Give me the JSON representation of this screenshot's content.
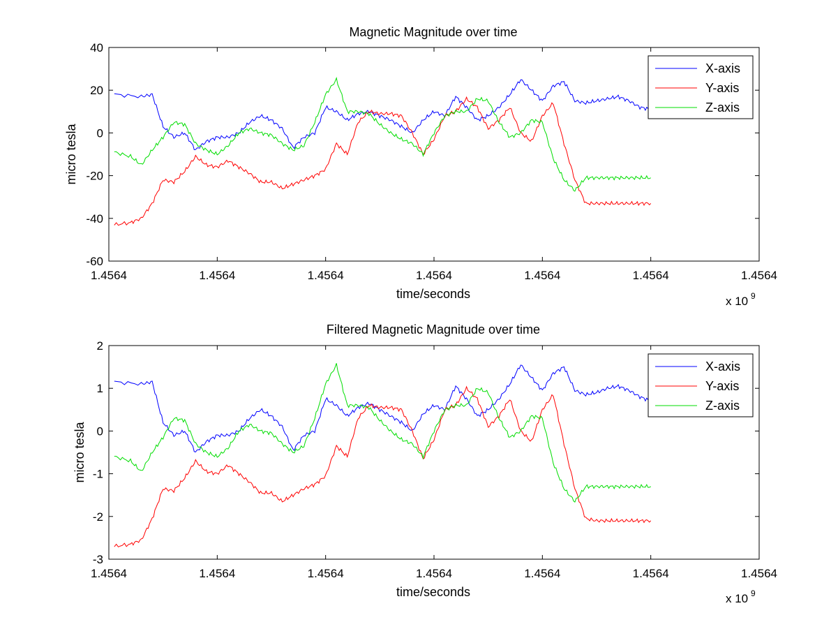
{
  "colors": {
    "x_axis": "#0000ff",
    "y_axis": "#ff0000",
    "z_axis": "#00dd00"
  },
  "chart_data": [
    {
      "type": "line",
      "title": "Magnetic Magnitude over time",
      "xlabel": "time/seconds",
      "ylabel": "micro tesla",
      "x_exponent_label": "x 10",
      "x_exponent_power": "9",
      "xlim": [
        0,
        6
      ],
      "ylim": [
        -60,
        40
      ],
      "xtick_labels": [
        "1.4564",
        "1.4564",
        "1.4564",
        "1.4564",
        "1.4564",
        "1.4564",
        "1.4564"
      ],
      "yticks": [
        -60,
        -40,
        -20,
        0,
        20,
        40
      ],
      "ytick_labels": [
        "-60",
        "-40",
        "-20",
        "0",
        "20",
        "40"
      ],
      "grid": false,
      "legend": "top-right",
      "series": [
        {
          "name": "X-axis",
          "x": [
            0.05,
            0.3,
            0.4,
            0.5,
            0.6,
            0.7,
            0.8,
            0.9,
            1.0,
            1.1,
            1.2,
            1.3,
            1.4,
            1.5,
            1.6,
            1.7,
            1.8,
            1.9,
            2.0,
            2.1,
            2.2,
            2.3,
            2.4,
            2.5,
            2.6,
            2.7,
            2.8,
            2.9,
            3.0,
            3.1,
            3.2,
            3.3,
            3.4,
            3.5,
            3.6,
            3.7,
            3.8,
            3.9,
            4.0,
            4.1,
            4.2,
            4.3,
            4.4,
            4.5,
            4.6,
            4.7,
            4.8,
            4.9,
            5.0
          ],
          "y": [
            18,
            17,
            18,
            3,
            -2,
            0,
            -8,
            -4,
            -2,
            -2,
            0,
            5,
            8,
            6,
            2,
            -7,
            -2,
            0,
            12,
            10,
            6,
            9,
            10,
            8,
            6,
            3,
            0,
            6,
            10,
            8,
            17,
            12,
            6,
            8,
            12,
            18,
            25,
            20,
            15,
            22,
            24,
            15,
            14,
            15,
            16,
            17,
            15,
            12,
            11
          ]
        },
        {
          "name": "Y-axis",
          "x": [
            0.05,
            0.2,
            0.3,
            0.4,
            0.5,
            0.6,
            0.7,
            0.8,
            0.9,
            1.0,
            1.1,
            1.2,
            1.3,
            1.4,
            1.5,
            1.6,
            1.7,
            1.8,
            1.9,
            2.0,
            2.1,
            2.2,
            2.3,
            2.4,
            2.5,
            2.6,
            2.7,
            2.8,
            2.9,
            3.0,
            3.1,
            3.2,
            3.3,
            3.4,
            3.5,
            3.6,
            3.7,
            3.8,
            3.9,
            4.0,
            4.1,
            4.2,
            4.3,
            4.4,
            4.5,
            4.6,
            4.7,
            4.8,
            4.9,
            5.0
          ],
          "y": [
            -43,
            -42,
            -40,
            -33,
            -22,
            -23,
            -18,
            -11,
            -15,
            -16,
            -13,
            -16,
            -19,
            -23,
            -23,
            -26,
            -24,
            -22,
            -20,
            -17,
            -5,
            -10,
            5,
            10,
            9,
            9,
            8,
            0,
            -10,
            -3,
            8,
            10,
            16,
            12,
            2,
            6,
            12,
            0,
            -4,
            8,
            14,
            -5,
            -22,
            -33,
            -33,
            -33,
            -33,
            -33,
            -33,
            -33
          ]
        },
        {
          "name": "Z-axis",
          "x": [
            0.05,
            0.2,
            0.3,
            0.4,
            0.5,
            0.6,
            0.7,
            0.8,
            0.9,
            1.0,
            1.1,
            1.2,
            1.3,
            1.4,
            1.5,
            1.6,
            1.7,
            1.8,
            1.9,
            2.0,
            2.1,
            2.2,
            2.3,
            2.4,
            2.5,
            2.6,
            2.7,
            2.8,
            2.9,
            3.0,
            3.1,
            3.2,
            3.3,
            3.4,
            3.5,
            3.6,
            3.7,
            3.8,
            3.9,
            4.0,
            4.1,
            4.2,
            4.3,
            4.4,
            4.5,
            4.6,
            4.7,
            4.8,
            4.9,
            5.0
          ],
          "y": [
            -9,
            -11,
            -15,
            -8,
            -2,
            5,
            4,
            -5,
            -8,
            -10,
            -6,
            0,
            2,
            0,
            -1,
            -5,
            -8,
            -6,
            5,
            18,
            25,
            10,
            10,
            9,
            4,
            0,
            -3,
            -5,
            -10,
            0,
            8,
            10,
            10,
            16,
            15,
            5,
            -2,
            0,
            6,
            5,
            -12,
            -22,
            -27,
            -21,
            -21,
            -21,
            -21,
            -21,
            -21,
            -21
          ]
        }
      ]
    },
    {
      "type": "line",
      "title": "Filtered Magnetic Magnitude over time",
      "xlabel": "time/seconds",
      "ylabel": "micro tesla",
      "x_exponent_label": "x 10",
      "x_exponent_power": "9",
      "xlim": [
        0,
        6
      ],
      "ylim": [
        -3,
        2
      ],
      "xtick_labels": [
        "1.4564",
        "1.4564",
        "1.4564",
        "1.4564",
        "1.4564",
        "1.4564",
        "1.4564"
      ],
      "yticks": [
        -3,
        -2,
        -1,
        0,
        1,
        2
      ],
      "ytick_labels": [
        "-3",
        "-2",
        "-1",
        "0",
        "1",
        "2"
      ],
      "grid": false,
      "legend": "top-right",
      "series": [
        {
          "name": "X-axis",
          "x": [
            0.05,
            0.3,
            0.4,
            0.5,
            0.6,
            0.7,
            0.8,
            0.9,
            1.0,
            1.1,
            1.2,
            1.3,
            1.4,
            1.5,
            1.6,
            1.7,
            1.8,
            1.9,
            2.0,
            2.1,
            2.2,
            2.3,
            2.4,
            2.5,
            2.6,
            2.7,
            2.8,
            2.9,
            3.0,
            3.1,
            3.2,
            3.3,
            3.4,
            3.5,
            3.6,
            3.7,
            3.8,
            3.9,
            4.0,
            4.1,
            4.2,
            4.3,
            4.4,
            4.5,
            4.6,
            4.7,
            4.8,
            4.9,
            5.0
          ],
          "y": [
            1.15,
            1.1,
            1.15,
            0.2,
            -0.1,
            0.0,
            -0.5,
            -0.25,
            -0.1,
            -0.1,
            0.0,
            0.3,
            0.5,
            0.35,
            0.1,
            -0.45,
            -0.1,
            0.0,
            0.75,
            0.6,
            0.35,
            0.55,
            0.65,
            0.5,
            0.35,
            0.2,
            0.0,
            0.4,
            0.6,
            0.5,
            1.05,
            0.75,
            0.35,
            0.5,
            0.75,
            1.1,
            1.55,
            1.25,
            0.95,
            1.35,
            1.5,
            0.95,
            0.85,
            0.9,
            1.0,
            1.05,
            0.95,
            0.8,
            0.7
          ]
        },
        {
          "name": "Y-axis",
          "x": [
            0.05,
            0.2,
            0.3,
            0.4,
            0.5,
            0.6,
            0.7,
            0.8,
            0.9,
            1.0,
            1.1,
            1.2,
            1.3,
            1.4,
            1.5,
            1.6,
            1.7,
            1.8,
            1.9,
            2.0,
            2.1,
            2.2,
            2.3,
            2.4,
            2.5,
            2.6,
            2.7,
            2.8,
            2.9,
            3.0,
            3.1,
            3.2,
            3.3,
            3.4,
            3.5,
            3.6,
            3.7,
            3.8,
            3.9,
            4.0,
            4.1,
            4.2,
            4.3,
            4.4,
            4.5,
            4.6,
            4.7,
            4.8,
            4.9,
            5.0
          ],
          "y": [
            -2.7,
            -2.65,
            -2.55,
            -2.05,
            -1.35,
            -1.4,
            -1.1,
            -0.7,
            -0.95,
            -1.0,
            -0.8,
            -1.0,
            -1.2,
            -1.45,
            -1.45,
            -1.65,
            -1.5,
            -1.35,
            -1.25,
            -1.05,
            -0.35,
            -0.6,
            0.3,
            0.6,
            0.55,
            0.55,
            0.5,
            0.0,
            -0.65,
            -0.2,
            0.5,
            0.6,
            1.0,
            0.75,
            0.1,
            0.35,
            0.75,
            0.0,
            -0.25,
            0.5,
            0.85,
            -0.3,
            -1.35,
            -2.05,
            -2.1,
            -2.1,
            -2.1,
            -2.1,
            -2.1,
            -2.1
          ]
        },
        {
          "name": "Z-axis",
          "x": [
            0.05,
            0.2,
            0.3,
            0.4,
            0.5,
            0.6,
            0.7,
            0.8,
            0.9,
            1.0,
            1.1,
            1.2,
            1.3,
            1.4,
            1.5,
            1.6,
            1.7,
            1.8,
            1.9,
            2.0,
            2.1,
            2.2,
            2.3,
            2.4,
            2.5,
            2.6,
            2.7,
            2.8,
            2.9,
            3.0,
            3.1,
            3.2,
            3.3,
            3.4,
            3.5,
            3.6,
            3.7,
            3.8,
            3.9,
            4.0,
            4.1,
            4.2,
            4.3,
            4.4,
            4.5,
            4.6,
            4.7,
            4.8,
            4.9,
            5.0
          ],
          "y": [
            -0.6,
            -0.7,
            -0.95,
            -0.5,
            -0.15,
            0.3,
            0.25,
            -0.3,
            -0.5,
            -0.6,
            -0.4,
            0.0,
            0.15,
            0.0,
            -0.05,
            -0.3,
            -0.5,
            -0.35,
            0.3,
            1.1,
            1.55,
            0.6,
            0.6,
            0.55,
            0.25,
            0.0,
            -0.2,
            -0.3,
            -0.6,
            0.0,
            0.5,
            0.6,
            0.6,
            1.0,
            0.9,
            0.3,
            -0.15,
            0.0,
            0.35,
            0.3,
            -0.75,
            -1.35,
            -1.65,
            -1.3,
            -1.3,
            -1.3,
            -1.3,
            -1.3,
            -1.3,
            -1.3
          ]
        }
      ]
    }
  ]
}
